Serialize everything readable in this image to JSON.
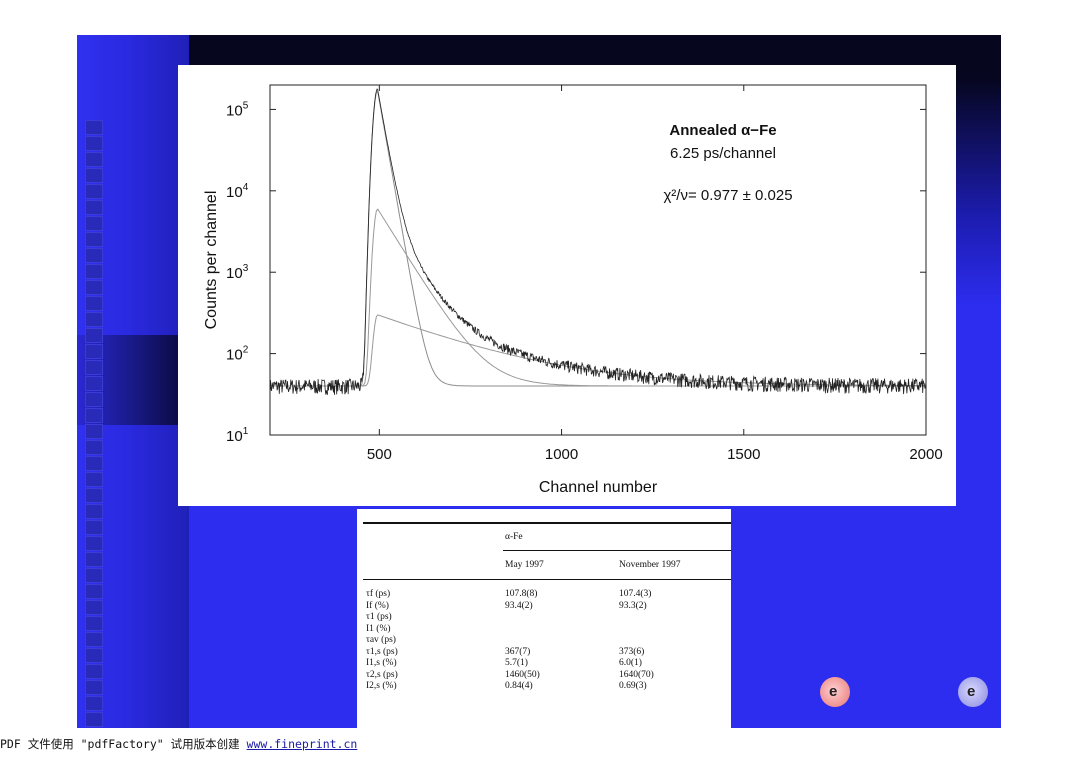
{
  "chart_data": {
    "type": "line",
    "title": "Annealed α−Fe",
    "subtitle": "6.25 ps/channel",
    "annotation": "χ²/ν= 0.977 ± 0.025",
    "xlabel": "Channel number",
    "ylabel": "Counts per channel",
    "xlim": [
      200,
      2000
    ],
    "ylim_log10": [
      1,
      5.3
    ],
    "log_y": true,
    "xticks": [
      500,
      1000,
      1500,
      2000
    ],
    "yticks": [
      {
        "value": 10,
        "base": "10",
        "exp": "1"
      },
      {
        "value": 100,
        "base": "10",
        "exp": "2"
      },
      {
        "value": 1000,
        "base": "10",
        "exp": "3"
      },
      {
        "value": 10000,
        "base": "10",
        "exp": "4"
      },
      {
        "value": 100000,
        "base": "10",
        "exp": "5"
      }
    ],
    "grid": false,
    "background_level": 40,
    "series": [
      {
        "kind": "measured",
        "peak_channel": 495,
        "peak_counts": 180000,
        "color": "#222222"
      },
      {
        "kind": "fit-component",
        "peak_channel": 495,
        "peak_counts": 6000,
        "color": "#999999"
      },
      {
        "kind": "fit-component",
        "peak_channel": 495,
        "peak_counts": 260,
        "color": "#999999"
      }
    ]
  },
  "table": {
    "group_header": "α-Fe",
    "columns": [
      "May 1997",
      "November 1997"
    ],
    "rows": [
      {
        "label": "τf (ps)",
        "v1": "107.8(8)",
        "v2": "107.4(3)"
      },
      {
        "label": "If (%)",
        "v1": "93.4(2)",
        "v2": "93.3(2)"
      },
      {
        "label": "τ1 (ps)",
        "v1": "",
        "v2": ""
      },
      {
        "label": "I1 (%)",
        "v1": "",
        "v2": ""
      },
      {
        "label": "τav (ps)",
        "v1": "",
        "v2": ""
      },
      {
        "label": "τ1,s (ps)",
        "v1": "367(7)",
        "v2": "373(6)"
      },
      {
        "label": "I1,s (%)",
        "v1": "5.7(1)",
        "v2": "6.0(1)"
      },
      {
        "label": "τ2,s (ps)",
        "v1": "1460(50)",
        "v2": "1640(70)"
      },
      {
        "label": "I2,s (%)",
        "v1": "0.84(4)",
        "v2": "0.69(3)"
      }
    ]
  },
  "footer": {
    "text": "PDF 文件使用 \"pdfFactory\" 试用版本创建 ",
    "link": "www.fineprint.cn"
  },
  "nav": {
    "prev_icon": "prev-slide-icon",
    "next_icon": "next-slide-icon"
  }
}
